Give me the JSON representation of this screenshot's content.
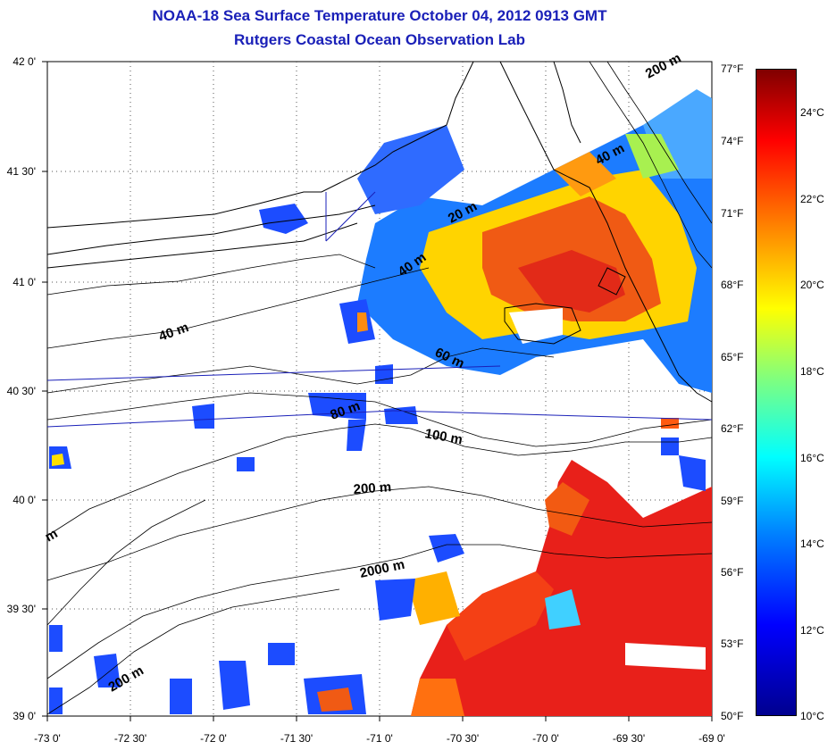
{
  "title": "NOAA-18 Sea Surface Temperature October 04, 2012 0913 GMT",
  "subtitle": "Rutgers Coastal Ocean Observation Lab",
  "lat_labels": [
    "42 0'",
    "41 30'",
    "41 0'",
    "40 30'",
    "40 0'",
    "39 30'",
    "39 0'"
  ],
  "lon_labels": [
    "-73 0'",
    "-72 30'",
    "-72 0'",
    "-71 30'",
    "-71 0'",
    "-70 30'",
    "-70 0'",
    "-69 30'",
    "-69 0'"
  ],
  "fahrenheit_labels": [
    "77°F",
    "74°F",
    "71°F",
    "68°F",
    "65°F",
    "62°F",
    "59°F",
    "56°F",
    "53°F",
    "50°F"
  ],
  "celsius_labels": [
    "24°C",
    "22°C",
    "20°C",
    "18°C",
    "16°C",
    "14°C",
    "12°C",
    "10°C"
  ],
  "contour_labels": [
    "200 m",
    "40 m",
    "20 m",
    "40 m",
    "40 m",
    "60 m",
    "80 m",
    "100 m",
    "200 m",
    "2000 m",
    "200 m",
    "m"
  ],
  "colors": {
    "title": "#1a20b8",
    "cold": "#0000ff",
    "warm": "#ff0000",
    "land_outline": "#000000",
    "transect": "#1a20b8"
  }
}
